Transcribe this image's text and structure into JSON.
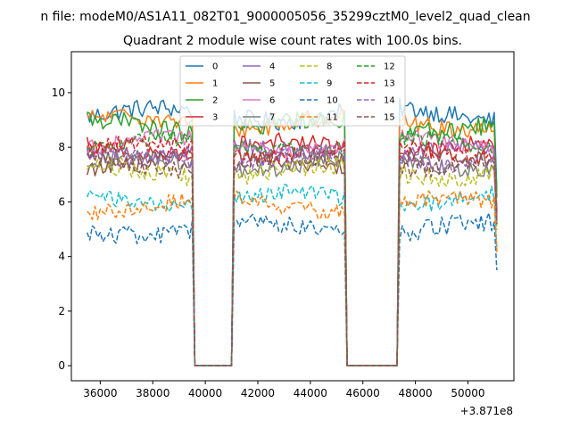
{
  "suptitle": "n file: modeM0/AS1A11_082T01_9000005056_35299cztM0_level2_quad_clean",
  "chart_data": {
    "type": "line",
    "title": "Quadrant 2 module wise count rates with 100.0s bins.",
    "xlabel": "",
    "ylabel": "",
    "x_offset_label": "+3.871e8",
    "xlim": [
      34900,
      51750
    ],
    "ylim": [
      -0.55,
      11.5
    ],
    "xticks": [
      36000,
      38000,
      40000,
      42000,
      44000,
      46000,
      48000,
      50000
    ],
    "xtick_labels": [
      "36000",
      "38000",
      "40000",
      "42000",
      "44000",
      "46000",
      "48000",
      "50000"
    ],
    "yticks": [
      0,
      2,
      4,
      6,
      8,
      10
    ],
    "ytick_labels": [
      "0",
      "2",
      "4",
      "6",
      "8",
      "10"
    ],
    "x_start": 35500,
    "x_end": 51100,
    "x_step": 100,
    "gaps": [
      [
        39500,
        41100
      ],
      [
        45300,
        47400
      ]
    ],
    "legend_position": "top-center",
    "series": [
      {
        "name": "0",
        "color": "#1f77b4",
        "dash": "solid",
        "level": 9.2,
        "amp": 0.35
      },
      {
        "name": "1",
        "color": "#ff7f0e",
        "dash": "solid",
        "level": 8.9,
        "amp": 0.3
      },
      {
        "name": "2",
        "color": "#2ca02c",
        "dash": "solid",
        "level": 8.8,
        "amp": 0.35
      },
      {
        "name": "3",
        "color": "#d62728",
        "dash": "solid",
        "level": 8.0,
        "amp": 0.3
      },
      {
        "name": "4",
        "color": "#9467bd",
        "dash": "solid",
        "level": 7.8,
        "amp": 0.3
      },
      {
        "name": "5",
        "color": "#8c564b",
        "dash": "solid",
        "level": 7.5,
        "amp": 0.3
      },
      {
        "name": "6",
        "color": "#e377c2",
        "dash": "solid",
        "level": 8.1,
        "amp": 0.3
      },
      {
        "name": "7",
        "color": "#7f7f7f",
        "dash": "solid",
        "level": 7.4,
        "amp": 0.3
      },
      {
        "name": "8",
        "color": "#bcbd22",
        "dash": "dashed",
        "level": 7.1,
        "amp": 0.35
      },
      {
        "name": "9",
        "color": "#17becf",
        "dash": "dashed",
        "level": 6.1,
        "amp": 0.3
      },
      {
        "name": "10",
        "color": "#1f77b4",
        "dash": "dashed",
        "level": 5.0,
        "amp": 0.35
      },
      {
        "name": "11",
        "color": "#ff7f0e",
        "dash": "dashed",
        "level": 5.9,
        "amp": 0.3
      },
      {
        "name": "12",
        "color": "#2ca02c",
        "dash": "dashed",
        "level": 8.1,
        "amp": 0.3
      },
      {
        "name": "13",
        "color": "#d62728",
        "dash": "dashed",
        "level": 7.9,
        "amp": 0.3
      },
      {
        "name": "14",
        "color": "#9467bd",
        "dash": "dashed",
        "level": 7.6,
        "amp": 0.3
      },
      {
        "name": "15",
        "color": "#8c564b",
        "dash": "dashed",
        "level": 7.4,
        "amp": 0.3
      }
    ]
  }
}
